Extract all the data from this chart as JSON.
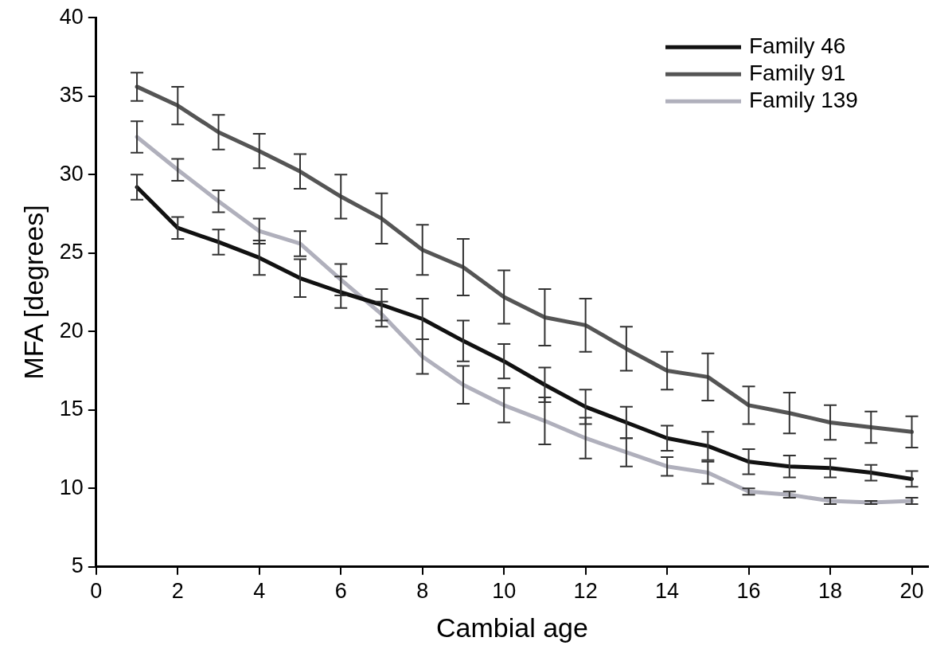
{
  "chart_data": {
    "type": "line",
    "xlabel": "Cambial age",
    "ylabel": "MFA [degrees]",
    "x": [
      1,
      2,
      3,
      4,
      5,
      6,
      7,
      8,
      9,
      10,
      11,
      12,
      13,
      14,
      15,
      16,
      17,
      18,
      19,
      20
    ],
    "xlim": [
      0,
      20.4
    ],
    "xticks": [
      0,
      2,
      4,
      6,
      8,
      10,
      12,
      14,
      16,
      18,
      20
    ],
    "ylim": [
      5,
      40
    ],
    "yticks": [
      5,
      10,
      15,
      20,
      25,
      30,
      35,
      40
    ],
    "grid": false,
    "legend": "top right",
    "marker": "none",
    "line_style": "solid",
    "series": [
      {
        "name": "Family 46",
        "color": "#111111",
        "values": [
          29.2,
          26.6,
          25.7,
          24.7,
          23.4,
          22.5,
          21.7,
          20.8,
          19.4,
          18.1,
          16.6,
          15.2,
          14.2,
          13.2,
          12.7,
          11.7,
          11.4,
          11.3,
          11.0,
          10.6
        ],
        "errors": [
          0.8,
          0.7,
          0.8,
          1.1,
          1.2,
          1.0,
          1.0,
          1.3,
          1.3,
          1.1,
          1.1,
          1.1,
          1.0,
          0.8,
          0.9,
          0.8,
          0.7,
          0.6,
          0.5,
          0.5
        ]
      },
      {
        "name": "Family 91",
        "color": "#555555",
        "values": [
          35.6,
          34.4,
          32.7,
          31.5,
          30.2,
          28.6,
          27.2,
          25.2,
          24.1,
          22.2,
          20.9,
          20.4,
          18.9,
          17.5,
          17.1,
          15.3,
          14.8,
          14.2,
          13.9,
          13.6
        ],
        "errors": [
          0.9,
          1.2,
          1.1,
          1.1,
          1.1,
          1.4,
          1.6,
          1.6,
          1.8,
          1.7,
          1.8,
          1.7,
          1.4,
          1.2,
          1.5,
          1.2,
          1.3,
          1.1,
          1.0,
          1.0
        ]
      },
      {
        "name": "Family 139",
        "color": "#b0b0bc",
        "values": [
          32.4,
          30.3,
          28.3,
          26.4,
          25.6,
          23.3,
          21.1,
          18.4,
          16.6,
          15.3,
          14.3,
          13.2,
          12.3,
          11.4,
          11.0,
          9.8,
          9.6,
          9.2,
          9.1,
          9.2
        ],
        "errors": [
          1.0,
          0.7,
          0.7,
          0.8,
          0.8,
          1.0,
          0.8,
          1.1,
          1.2,
          1.1,
          1.5,
          1.3,
          0.9,
          0.6,
          0.7,
          0.2,
          0.2,
          0.2,
          0.1,
          0.2
        ]
      }
    ]
  }
}
